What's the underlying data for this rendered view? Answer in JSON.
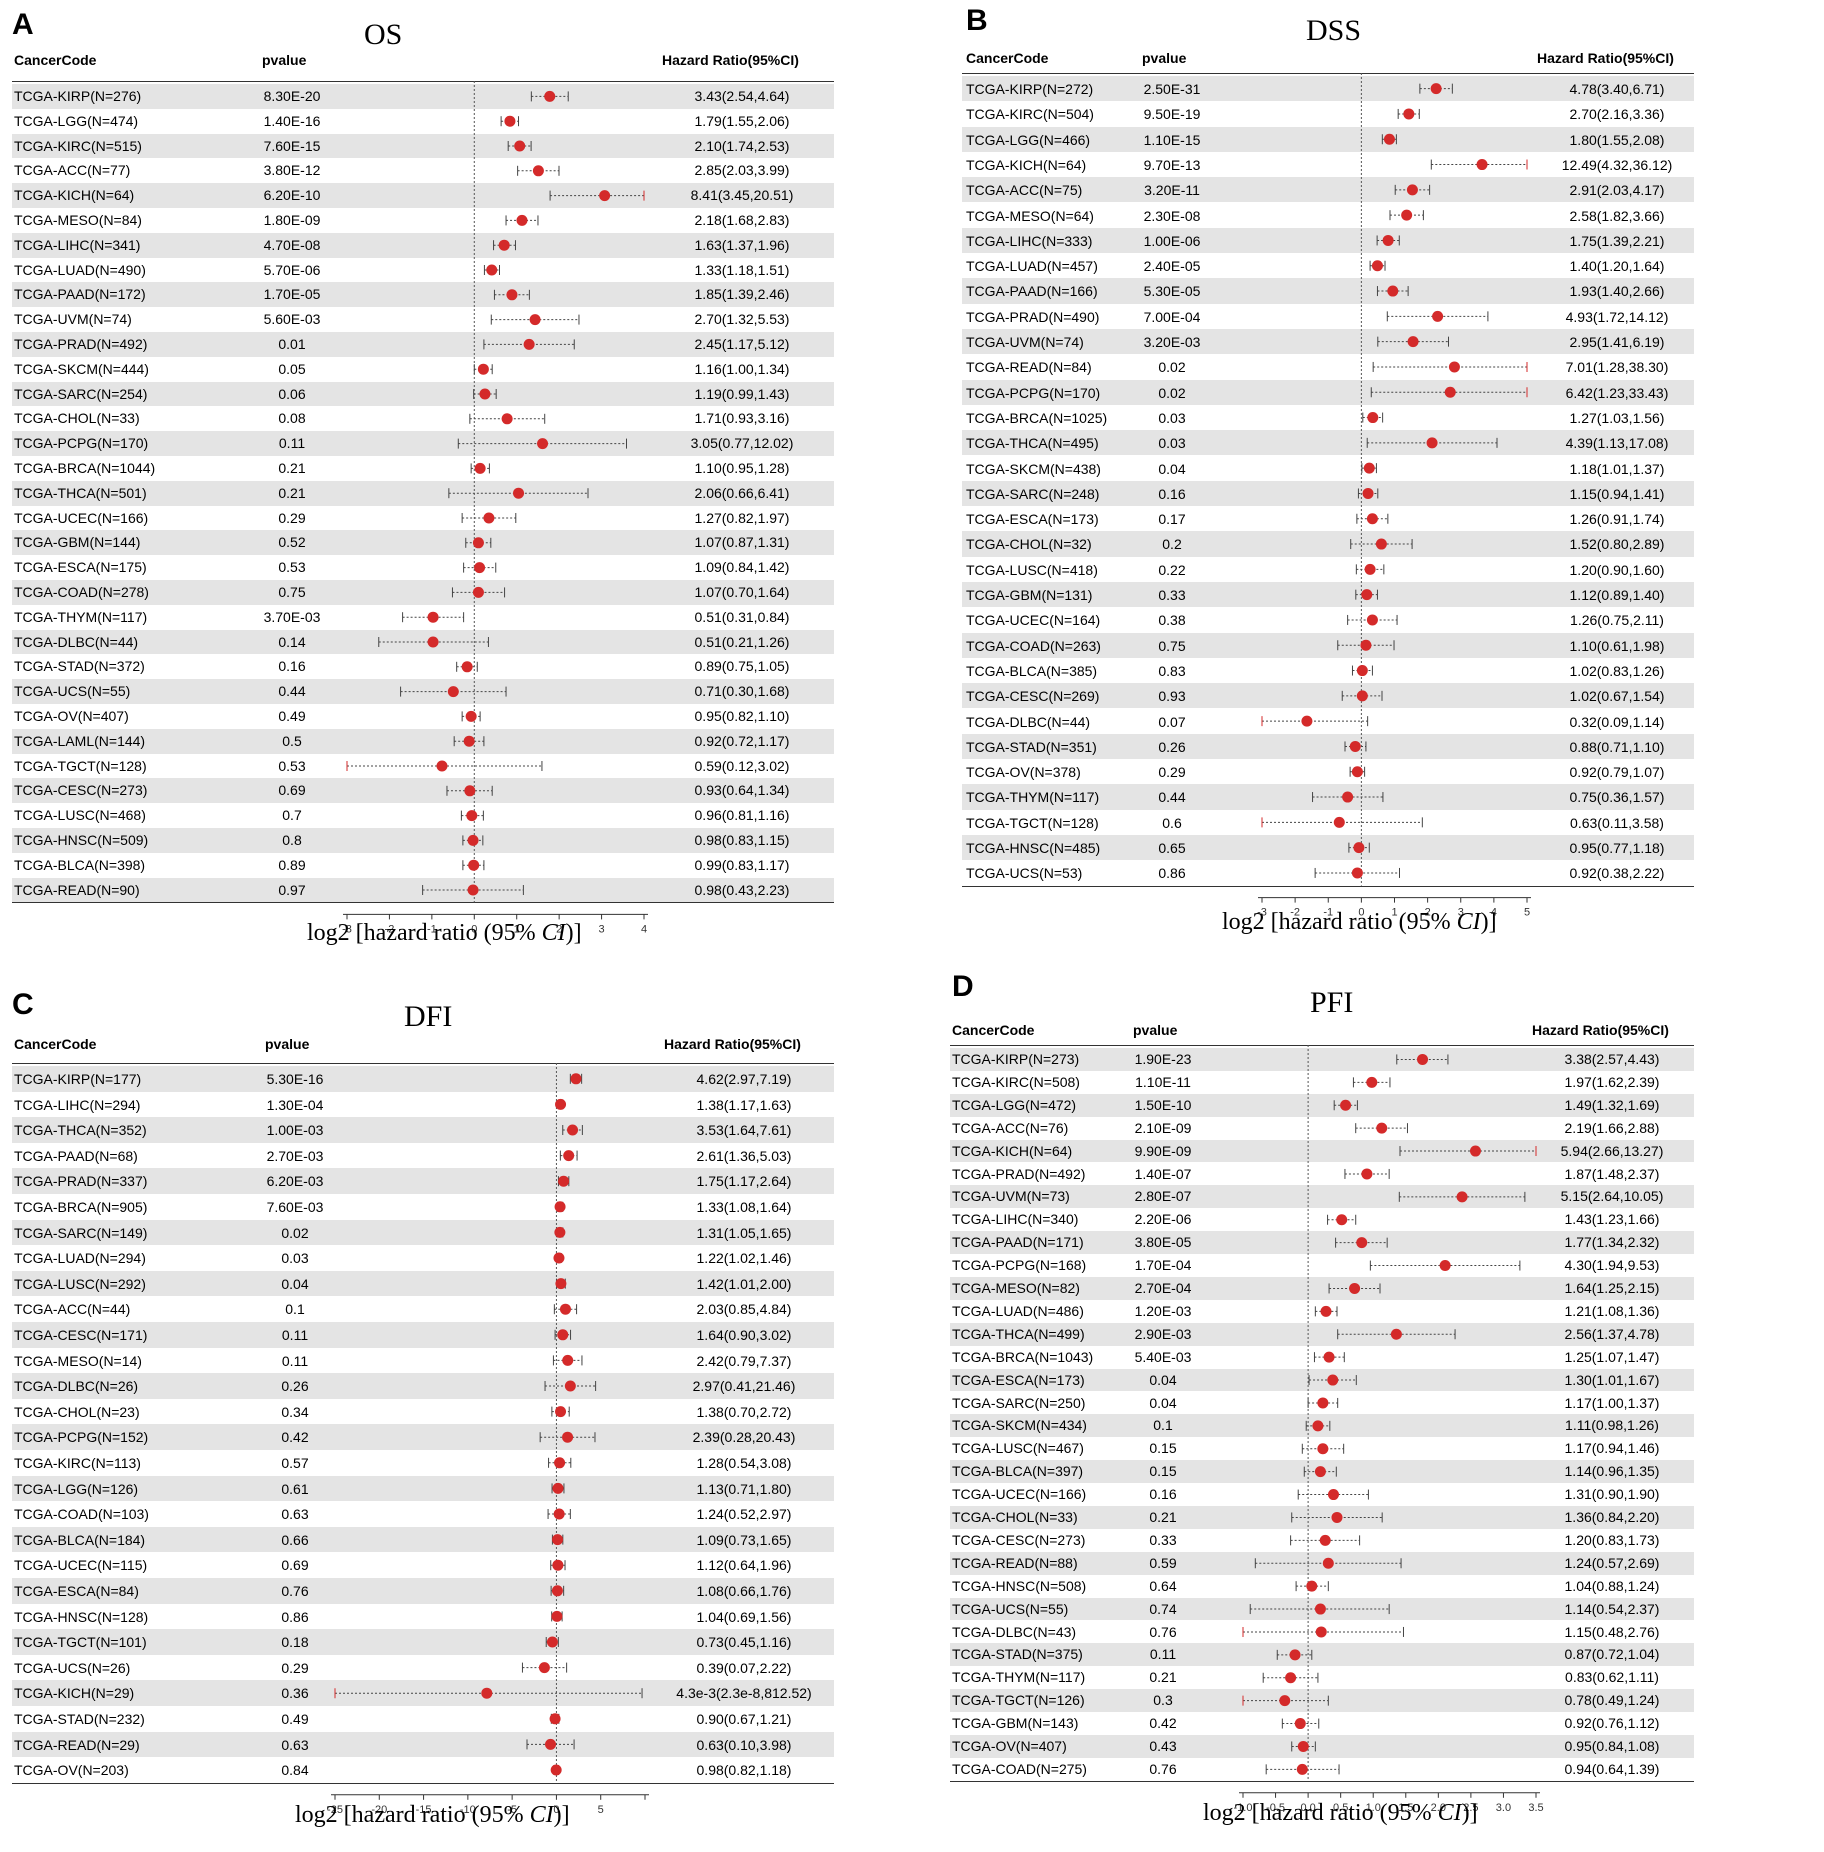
{
  "chart_data": [
    {
      "letter": "A",
      "title": "OS",
      "type": "forest",
      "headers": {
        "code": "CancerCode",
        "pvalue": "pvalue",
        "hr": "Hazard Ratio(95%CI)"
      },
      "xlabel_prefix": "log2 [hazard ratio (95% ",
      "xlabel_ci": "CI",
      "xlabel_suffix": ")]",
      "xlim": [
        -3,
        4
      ],
      "xticks": [
        "-3",
        "-2",
        "-1",
        "0",
        "1",
        "2",
        "3",
        "4"
      ],
      "rows": [
        {
          "code": "TCGA-KIRP(N=276)",
          "pvalue": "8.30E-20",
          "hr": "3.43(2.54,4.64)"
        },
        {
          "code": "TCGA-LGG(N=474)",
          "pvalue": "1.40E-16",
          "hr": "1.79(1.55,2.06)"
        },
        {
          "code": "TCGA-KIRC(N=515)",
          "pvalue": "7.60E-15",
          "hr": "2.10(1.74,2.53)"
        },
        {
          "code": "TCGA-ACC(N=77)",
          "pvalue": "3.80E-12",
          "hr": "2.85(2.03,3.99)"
        },
        {
          "code": "TCGA-KICH(N=64)",
          "pvalue": "6.20E-10",
          "hr": "8.41(3.45,20.51)"
        },
        {
          "code": "TCGA-MESO(N=84)",
          "pvalue": "1.80E-09",
          "hr": "2.18(1.68,2.83)"
        },
        {
          "code": "TCGA-LIHC(N=341)",
          "pvalue": "4.70E-08",
          "hr": "1.63(1.37,1.96)"
        },
        {
          "code": "TCGA-LUAD(N=490)",
          "pvalue": "5.70E-06",
          "hr": "1.33(1.18,1.51)"
        },
        {
          "code": "TCGA-PAAD(N=172)",
          "pvalue": "1.70E-05",
          "hr": "1.85(1.39,2.46)"
        },
        {
          "code": "TCGA-UVM(N=74)",
          "pvalue": "5.60E-03",
          "hr": "2.70(1.32,5.53)"
        },
        {
          "code": "TCGA-PRAD(N=492)",
          "pvalue": "0.01",
          "hr": "2.45(1.17,5.12)"
        },
        {
          "code": "TCGA-SKCM(N=444)",
          "pvalue": "0.05",
          "hr": "1.16(1.00,1.34)"
        },
        {
          "code": "TCGA-SARC(N=254)",
          "pvalue": "0.06",
          "hr": "1.19(0.99,1.43)"
        },
        {
          "code": "TCGA-CHOL(N=33)",
          "pvalue": "0.08",
          "hr": "1.71(0.93,3.16)"
        },
        {
          "code": "TCGA-PCPG(N=170)",
          "pvalue": "0.11",
          "hr": "3.05(0.77,12.02)"
        },
        {
          "code": "TCGA-BRCA(N=1044)",
          "pvalue": "0.21",
          "hr": "1.10(0.95,1.28)"
        },
        {
          "code": "TCGA-THCA(N=501)",
          "pvalue": "0.21",
          "hr": "2.06(0.66,6.41)"
        },
        {
          "code": "TCGA-UCEC(N=166)",
          "pvalue": "0.29",
          "hr": "1.27(0.82,1.97)"
        },
        {
          "code": "TCGA-GBM(N=144)",
          "pvalue": "0.52",
          "hr": "1.07(0.87,1.31)"
        },
        {
          "code": "TCGA-ESCA(N=175)",
          "pvalue": "0.53",
          "hr": "1.09(0.84,1.42)"
        },
        {
          "code": "TCGA-COAD(N=278)",
          "pvalue": "0.75",
          "hr": "1.07(0.70,1.64)"
        },
        {
          "code": "TCGA-THYM(N=117)",
          "pvalue": "3.70E-03",
          "hr": "0.51(0.31,0.84)"
        },
        {
          "code": "TCGA-DLBC(N=44)",
          "pvalue": "0.14",
          "hr": "0.51(0.21,1.26)"
        },
        {
          "code": "TCGA-STAD(N=372)",
          "pvalue": "0.16",
          "hr": "0.89(0.75,1.05)"
        },
        {
          "code": "TCGA-UCS(N=55)",
          "pvalue": "0.44",
          "hr": "0.71(0.30,1.68)"
        },
        {
          "code": "TCGA-OV(N=407)",
          "pvalue": "0.49",
          "hr": "0.95(0.82,1.10)"
        },
        {
          "code": "TCGA-LAML(N=144)",
          "pvalue": "0.5",
          "hr": "0.92(0.72,1.17)"
        },
        {
          "code": "TCGA-TGCT(N=128)",
          "pvalue": "0.53",
          "hr": "0.59(0.12,3.02)"
        },
        {
          "code": "TCGA-CESC(N=273)",
          "pvalue": "0.69",
          "hr": "0.93(0.64,1.34)"
        },
        {
          "code": "TCGA-LUSC(N=468)",
          "pvalue": "0.7",
          "hr": "0.96(0.81,1.16)"
        },
        {
          "code": "TCGA-HNSC(N=509)",
          "pvalue": "0.8",
          "hr": "0.98(0.83,1.15)"
        },
        {
          "code": "TCGA-BLCA(N=398)",
          "pvalue": "0.89",
          "hr": "0.99(0.83,1.17)"
        },
        {
          "code": "TCGA-READ(N=90)",
          "pvalue": "0.97",
          "hr": "0.98(0.43,2.23)"
        }
      ]
    },
    {
      "letter": "B",
      "title": "DSS",
      "type": "forest",
      "headers": {
        "code": "CancerCode",
        "pvalue": "pvalue",
        "hr": "Hazard Ratio(95%CI)"
      },
      "xlabel_prefix": "log2 [hazard ratio (95% ",
      "xlabel_ci": "CI",
      "xlabel_suffix": ")]",
      "xlim": [
        -3,
        5
      ],
      "xticks": [
        "-3",
        "-2",
        "-1",
        "0",
        "1",
        "2",
        "3",
        "4",
        "5"
      ],
      "rows": [
        {
          "code": "TCGA-KIRP(N=272)",
          "pvalue": "2.50E-31",
          "hr": "4.78(3.40,6.71)"
        },
        {
          "code": "TCGA-KIRC(N=504)",
          "pvalue": "9.50E-19",
          "hr": "2.70(2.16,3.36)"
        },
        {
          "code": "TCGA-LGG(N=466)",
          "pvalue": "1.10E-15",
          "hr": "1.80(1.55,2.08)"
        },
        {
          "code": "TCGA-KICH(N=64)",
          "pvalue": "9.70E-13",
          "hr": "12.49(4.32,36.12)"
        },
        {
          "code": "TCGA-ACC(N=75)",
          "pvalue": "3.20E-11",
          "hr": "2.91(2.03,4.17)"
        },
        {
          "code": "TCGA-MESO(N=64)",
          "pvalue": "2.30E-08",
          "hr": "2.58(1.82,3.66)"
        },
        {
          "code": "TCGA-LIHC(N=333)",
          "pvalue": "1.00E-06",
          "hr": "1.75(1.39,2.21)"
        },
        {
          "code": "TCGA-LUAD(N=457)",
          "pvalue": "2.40E-05",
          "hr": "1.40(1.20,1.64)"
        },
        {
          "code": "TCGA-PAAD(N=166)",
          "pvalue": "5.30E-05",
          "hr": "1.93(1.40,2.66)"
        },
        {
          "code": "TCGA-PRAD(N=490)",
          "pvalue": "7.00E-04",
          "hr": "4.93(1.72,14.12)"
        },
        {
          "code": "TCGA-UVM(N=74)",
          "pvalue": "3.20E-03",
          "hr": "2.95(1.41,6.19)"
        },
        {
          "code": "TCGA-READ(N=84)",
          "pvalue": "0.02",
          "hr": "7.01(1.28,38.30)"
        },
        {
          "code": "TCGA-PCPG(N=170)",
          "pvalue": "0.02",
          "hr": "6.42(1.23,33.43)"
        },
        {
          "code": "TCGA-BRCA(N=1025)",
          "pvalue": "0.03",
          "hr": "1.27(1.03,1.56)"
        },
        {
          "code": "TCGA-THCA(N=495)",
          "pvalue": "0.03",
          "hr": "4.39(1.13,17.08)"
        },
        {
          "code": "TCGA-SKCM(N=438)",
          "pvalue": "0.04",
          "hr": "1.18(1.01,1.37)"
        },
        {
          "code": "TCGA-SARC(N=248)",
          "pvalue": "0.16",
          "hr": "1.15(0.94,1.41)"
        },
        {
          "code": "TCGA-ESCA(N=173)",
          "pvalue": "0.17",
          "hr": "1.26(0.91,1.74)"
        },
        {
          "code": "TCGA-CHOL(N=32)",
          "pvalue": "0.2",
          "hr": "1.52(0.80,2.89)"
        },
        {
          "code": "TCGA-LUSC(N=418)",
          "pvalue": "0.22",
          "hr": "1.20(0.90,1.60)"
        },
        {
          "code": "TCGA-GBM(N=131)",
          "pvalue": "0.33",
          "hr": "1.12(0.89,1.40)"
        },
        {
          "code": "TCGA-UCEC(N=164)",
          "pvalue": "0.38",
          "hr": "1.26(0.75,2.11)"
        },
        {
          "code": "TCGA-COAD(N=263)",
          "pvalue": "0.75",
          "hr": "1.10(0.61,1.98)"
        },
        {
          "code": "TCGA-BLCA(N=385)",
          "pvalue": "0.83",
          "hr": "1.02(0.83,1.26)"
        },
        {
          "code": "TCGA-CESC(N=269)",
          "pvalue": "0.93",
          "hr": "1.02(0.67,1.54)"
        },
        {
          "code": "TCGA-DLBC(N=44)",
          "pvalue": "0.07",
          "hr": "0.32(0.09,1.14)"
        },
        {
          "code": "TCGA-STAD(N=351)",
          "pvalue": "0.26",
          "hr": "0.88(0.71,1.10)"
        },
        {
          "code": "TCGA-OV(N=378)",
          "pvalue": "0.29",
          "hr": "0.92(0.79,1.07)"
        },
        {
          "code": "TCGA-THYM(N=117)",
          "pvalue": "0.44",
          "hr": "0.75(0.36,1.57)"
        },
        {
          "code": "TCGA-TGCT(N=128)",
          "pvalue": "0.6",
          "hr": "0.63(0.11,3.58)"
        },
        {
          "code": "TCGA-HNSC(N=485)",
          "pvalue": "0.65",
          "hr": "0.95(0.77,1.18)"
        },
        {
          "code": "TCGA-UCS(N=53)",
          "pvalue": "0.86",
          "hr": "0.92(0.38,2.22)"
        }
      ]
    },
    {
      "letter": "C",
      "title": "DFI",
      "type": "forest",
      "headers": {
        "code": "CancerCode",
        "pvalue": "pvalue",
        "hr": "Hazard Ratio(95%CI)"
      },
      "xlabel_prefix": "log2 [hazard ratio (95% ",
      "xlabel_ci": "CI",
      "xlabel_suffix": ")]",
      "xlim": [
        -25,
        10
      ],
      "xticks": [
        "-25",
        "-20",
        "-15",
        "-10",
        "-5",
        "0",
        "5",
        ""
      ],
      "rows": [
        {
          "code": "TCGA-KIRP(N=177)",
          "pvalue": "5.30E-16",
          "hr": "4.62(2.97,7.19)"
        },
        {
          "code": "TCGA-LIHC(N=294)",
          "pvalue": "1.30E-04",
          "hr": "1.38(1.17,1.63)"
        },
        {
          "code": "TCGA-THCA(N=352)",
          "pvalue": "1.00E-03",
          "hr": "3.53(1.64,7.61)"
        },
        {
          "code": "TCGA-PAAD(N=68)",
          "pvalue": "2.70E-03",
          "hr": "2.61(1.36,5.03)"
        },
        {
          "code": "TCGA-PRAD(N=337)",
          "pvalue": "6.20E-03",
          "hr": "1.75(1.17,2.64)"
        },
        {
          "code": "TCGA-BRCA(N=905)",
          "pvalue": "7.60E-03",
          "hr": "1.33(1.08,1.64)"
        },
        {
          "code": "TCGA-SARC(N=149)",
          "pvalue": "0.02",
          "hr": "1.31(1.05,1.65)"
        },
        {
          "code": "TCGA-LUAD(N=294)",
          "pvalue": "0.03",
          "hr": "1.22(1.02,1.46)"
        },
        {
          "code": "TCGA-LUSC(N=292)",
          "pvalue": "0.04",
          "hr": "1.42(1.01,2.00)"
        },
        {
          "code": "TCGA-ACC(N=44)",
          "pvalue": "0.1",
          "hr": "2.03(0.85,4.84)"
        },
        {
          "code": "TCGA-CESC(N=171)",
          "pvalue": "0.11",
          "hr": "1.64(0.90,3.02)"
        },
        {
          "code": "TCGA-MESO(N=14)",
          "pvalue": "0.11",
          "hr": "2.42(0.79,7.37)"
        },
        {
          "code": "TCGA-DLBC(N=26)",
          "pvalue": "0.26",
          "hr": "2.97(0.41,21.46)"
        },
        {
          "code": "TCGA-CHOL(N=23)",
          "pvalue": "0.34",
          "hr": "1.38(0.70,2.72)"
        },
        {
          "code": "TCGA-PCPG(N=152)",
          "pvalue": "0.42",
          "hr": "2.39(0.28,20.43)"
        },
        {
          "code": "TCGA-KIRC(N=113)",
          "pvalue": "0.57",
          "hr": "1.28(0.54,3.08)"
        },
        {
          "code": "TCGA-LGG(N=126)",
          "pvalue": "0.61",
          "hr": "1.13(0.71,1.80)"
        },
        {
          "code": "TCGA-COAD(N=103)",
          "pvalue": "0.63",
          "hr": "1.24(0.52,2.97)"
        },
        {
          "code": "TCGA-BLCA(N=184)",
          "pvalue": "0.66",
          "hr": "1.09(0.73,1.65)"
        },
        {
          "code": "TCGA-UCEC(N=115)",
          "pvalue": "0.69",
          "hr": "1.12(0.64,1.96)"
        },
        {
          "code": "TCGA-ESCA(N=84)",
          "pvalue": "0.76",
          "hr": "1.08(0.66,1.76)"
        },
        {
          "code": "TCGA-HNSC(N=128)",
          "pvalue": "0.86",
          "hr": "1.04(0.69,1.56)"
        },
        {
          "code": "TCGA-TGCT(N=101)",
          "pvalue": "0.18",
          "hr": "0.73(0.45,1.16)"
        },
        {
          "code": "TCGA-UCS(N=26)",
          "pvalue": "0.29",
          "hr": "0.39(0.07,2.22)"
        },
        {
          "code": "TCGA-KICH(N=29)",
          "pvalue": "0.36",
          "hr": "4.3e-3(2.3e-8,812.52)"
        },
        {
          "code": "TCGA-STAD(N=232)",
          "pvalue": "0.49",
          "hr": "0.90(0.67,1.21)"
        },
        {
          "code": "TCGA-READ(N=29)",
          "pvalue": "0.63",
          "hr": "0.63(0.10,3.98)"
        },
        {
          "code": "TCGA-OV(N=203)",
          "pvalue": "0.84",
          "hr": "0.98(0.82,1.18)"
        }
      ]
    },
    {
      "letter": "D",
      "title": "PFI",
      "type": "forest",
      "headers": {
        "code": "CancerCode",
        "pvalue": "pvalue",
        "hr": "Hazard Ratio(95%CI)"
      },
      "xlabel_prefix": "log2 [hazard ratio (95% ",
      "xlabel_ci": "CI",
      "xlabel_suffix": ")]",
      "xlim": [
        -1.0,
        3.5
      ],
      "xticks": [
        "-1.0",
        "-0.5",
        "0.0",
        "0.5",
        "1.0",
        "1.5",
        "2.0",
        "2.5",
        "3.0",
        "3.5"
      ],
      "rows": [
        {
          "code": "TCGA-KIRP(N=273)",
          "pvalue": "1.90E-23",
          "hr": "3.38(2.57,4.43)"
        },
        {
          "code": "TCGA-KIRC(N=508)",
          "pvalue": "1.10E-11",
          "hr": "1.97(1.62,2.39)"
        },
        {
          "code": "TCGA-LGG(N=472)",
          "pvalue": "1.50E-10",
          "hr": "1.49(1.32,1.69)"
        },
        {
          "code": "TCGA-ACC(N=76)",
          "pvalue": "2.10E-09",
          "hr": "2.19(1.66,2.88)"
        },
        {
          "code": "TCGA-KICH(N=64)",
          "pvalue": "9.90E-09",
          "hr": "5.94(2.66,13.27)"
        },
        {
          "code": "TCGA-PRAD(N=492)",
          "pvalue": "1.40E-07",
          "hr": "1.87(1.48,2.37)"
        },
        {
          "code": "TCGA-UVM(N=73)",
          "pvalue": "2.80E-07",
          "hr": "5.15(2.64,10.05)"
        },
        {
          "code": "TCGA-LIHC(N=340)",
          "pvalue": "2.20E-06",
          "hr": "1.43(1.23,1.66)"
        },
        {
          "code": "TCGA-PAAD(N=171)",
          "pvalue": "3.80E-05",
          "hr": "1.77(1.34,2.32)"
        },
        {
          "code": "TCGA-PCPG(N=168)",
          "pvalue": "1.70E-04",
          "hr": "4.30(1.94,9.53)"
        },
        {
          "code": "TCGA-MESO(N=82)",
          "pvalue": "2.70E-04",
          "hr": "1.64(1.25,2.15)"
        },
        {
          "code": "TCGA-LUAD(N=486)",
          "pvalue": "1.20E-03",
          "hr": "1.21(1.08,1.36)"
        },
        {
          "code": "TCGA-THCA(N=499)",
          "pvalue": "2.90E-03",
          "hr": "2.56(1.37,4.78)"
        },
        {
          "code": "TCGA-BRCA(N=1043)",
          "pvalue": "5.40E-03",
          "hr": "1.25(1.07,1.47)"
        },
        {
          "code": "TCGA-ESCA(N=173)",
          "pvalue": "0.04",
          "hr": "1.30(1.01,1.67)"
        },
        {
          "code": "TCGA-SARC(N=250)",
          "pvalue": "0.04",
          "hr": "1.17(1.00,1.37)"
        },
        {
          "code": "TCGA-SKCM(N=434)",
          "pvalue": "0.1",
          "hr": "1.11(0.98,1.26)"
        },
        {
          "code": "TCGA-LUSC(N=467)",
          "pvalue": "0.15",
          "hr": "1.17(0.94,1.46)"
        },
        {
          "code": "TCGA-BLCA(N=397)",
          "pvalue": "0.15",
          "hr": "1.14(0.96,1.35)"
        },
        {
          "code": "TCGA-UCEC(N=166)",
          "pvalue": "0.16",
          "hr": "1.31(0.90,1.90)"
        },
        {
          "code": "TCGA-CHOL(N=33)",
          "pvalue": "0.21",
          "hr": "1.36(0.84,2.20)"
        },
        {
          "code": "TCGA-CESC(N=273)",
          "pvalue": "0.33",
          "hr": "1.20(0.83,1.73)"
        },
        {
          "code": "TCGA-READ(N=88)",
          "pvalue": "0.59",
          "hr": "1.24(0.57,2.69)"
        },
        {
          "code": "TCGA-HNSC(N=508)",
          "pvalue": "0.64",
          "hr": "1.04(0.88,1.24)"
        },
        {
          "code": "TCGA-UCS(N=55)",
          "pvalue": "0.74",
          "hr": "1.14(0.54,2.37)"
        },
        {
          "code": "TCGA-DLBC(N=43)",
          "pvalue": "0.76",
          "hr": "1.15(0.48,2.76)"
        },
        {
          "code": "TCGA-STAD(N=375)",
          "pvalue": "0.11",
          "hr": "0.87(0.72,1.04)"
        },
        {
          "code": "TCGA-THYM(N=117)",
          "pvalue": "0.21",
          "hr": "0.83(0.62,1.11)"
        },
        {
          "code": "TCGA-TGCT(N=126)",
          "pvalue": "0.3",
          "hr": "0.78(0.49,1.24)"
        },
        {
          "code": "TCGA-GBM(N=143)",
          "pvalue": "0.42",
          "hr": "0.92(0.76,1.12)"
        },
        {
          "code": "TCGA-OV(N=407)",
          "pvalue": "0.43",
          "hr": "0.95(0.84,1.08)"
        },
        {
          "code": "TCGA-COAD(N=275)",
          "pvalue": "0.76",
          "hr": "0.94(0.64,1.39)"
        }
      ]
    }
  ],
  "colors": {
    "point": "#d42a2a",
    "shade": "#e4e4e4",
    "axis": "#333333"
  }
}
